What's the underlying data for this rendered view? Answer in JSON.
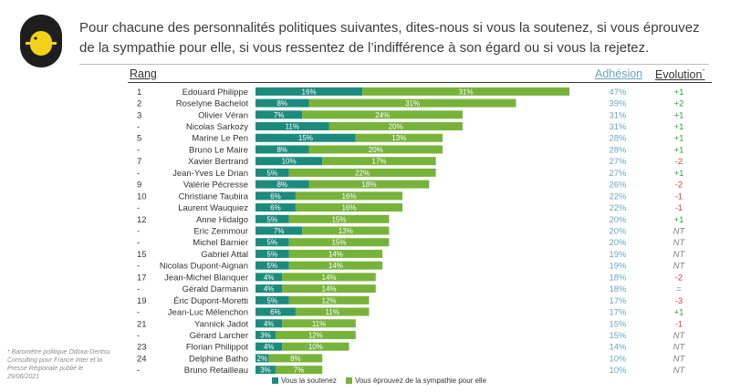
{
  "question": "Pour chacune des personnalités politiques suivantes, dites-nous si vous la soutenez, si vous éprouvez de la sympathie pour elle, si vous ressentez de l’indifférence à son égard ou si vous la rejetez.",
  "headers": {
    "rank": "Rang",
    "adhesion": "Adhésion",
    "evolution": "Evolution",
    "evolution_mark": "*"
  },
  "footnote": "* Baromètre politique Odoxa-Dentsu Consulting pour France Inter et la Presse Régionale publié le 29/06/2021",
  "legend": {
    "support": "Vous la soutenez",
    "sympathy": "Vous éprouvez de la sympathie pour elle"
  },
  "colors": {
    "support": "#1c8b7e",
    "sympathy": "#77b33a",
    "positive": "#3aa03a",
    "negative": "#e03c32",
    "neutral": "#7f7f7f",
    "adhesion_text": "#6aa7bd"
  },
  "chart_data": {
    "type": "bar",
    "orientation": "horizontal",
    "stacked": true,
    "categories": [
      "Edouard Philippe",
      "Roselyne Bachelot",
      "Olivier Véran",
      "Nicolas Sarkozy",
      "Marine Le Pen",
      "Bruno Le Maire",
      "Xavier Bertrand",
      "Jean-Yves Le Drian",
      "Valérie Pécresse",
      "Christiane Taubira",
      "Laurent Wauquiez",
      "Anne Hidalgo",
      "Eric Zemmour",
      "Michel Barnier",
      "Gabriel Attal",
      "Nicolas Dupont-Aignan",
      "Jean-Michel Blanquer",
      "Gérald Darmanin",
      "Éric Dupont-Moretti",
      "Jean-Luc Mélenchon",
      "Yannick Jadot",
      "Gérard Larcher",
      "Florian Philippot",
      "Delphine Batho",
      "Bruno Retailleau"
    ],
    "ranks": [
      "1",
      "2",
      "3",
      "-",
      "5",
      "-",
      "7",
      "-",
      "9",
      "10",
      "-",
      "12",
      "-",
      "-",
      "15",
      "-",
      "17",
      "-",
      "19",
      "-",
      "21",
      "-",
      "23",
      "24",
      "-"
    ],
    "series": [
      {
        "name": "Vous la soutenez",
        "values": [
          16,
          8,
          7,
          11,
          15,
          8,
          10,
          5,
          8,
          6,
          6,
          5,
          7,
          5,
          5,
          5,
          4,
          4,
          5,
          6,
          4,
          3,
          4,
          2,
          3
        ]
      },
      {
        "name": "Vous éprouvez de la sympathie pour elle",
        "values": [
          31,
          31,
          24,
          20,
          13,
          20,
          17,
          22,
          18,
          16,
          16,
          15,
          13,
          15,
          14,
          14,
          14,
          14,
          12,
          11,
          11,
          12,
          10,
          8,
          7
        ]
      }
    ],
    "series_labels": [
      [
        "16%",
        "8%",
        "7%",
        "11%",
        "15%",
        "8%",
        "10%",
        "5%",
        "8%",
        "6%",
        "6%",
        "5%",
        "7%",
        "5%",
        "5%",
        "5%",
        "4%",
        "4%",
        "5%",
        "6%",
        "4%",
        "3%",
        "4%",
        "2%",
        "3%"
      ],
      [
        "31%",
        "31%",
        "24%",
        "20%",
        "13%",
        "20%",
        "17%",
        "22%",
        "18%",
        "16%",
        "16%",
        "15%",
        "13%",
        "15%",
        "14%",
        "14%",
        "14%",
        "14%",
        "12%",
        "11%",
        "11%",
        "12%",
        "10%",
        "8%",
        "7%"
      ]
    ],
    "adhesion": [
      "47%",
      "39%",
      "31%",
      "31%",
      "28%",
      "28%",
      "27%",
      "27%",
      "26%",
      "22%",
      "22%",
      "20%",
      "20%",
      "20%",
      "19%",
      "19%",
      "18%",
      "18%",
      "17%",
      "17%",
      "15%",
      "15%",
      "14%",
      "10%",
      "10%"
    ],
    "evolution": [
      "+1",
      "+2",
      "+1",
      "+1",
      "+1",
      "+1",
      "-2",
      "+1",
      "-2",
      "-1",
      "-1",
      "+1",
      "NT",
      "NT",
      "NT",
      "NT",
      "-2",
      "=",
      "-3",
      "+1",
      "-1",
      "NT",
      "NT",
      "NT",
      "NT"
    ]
  }
}
